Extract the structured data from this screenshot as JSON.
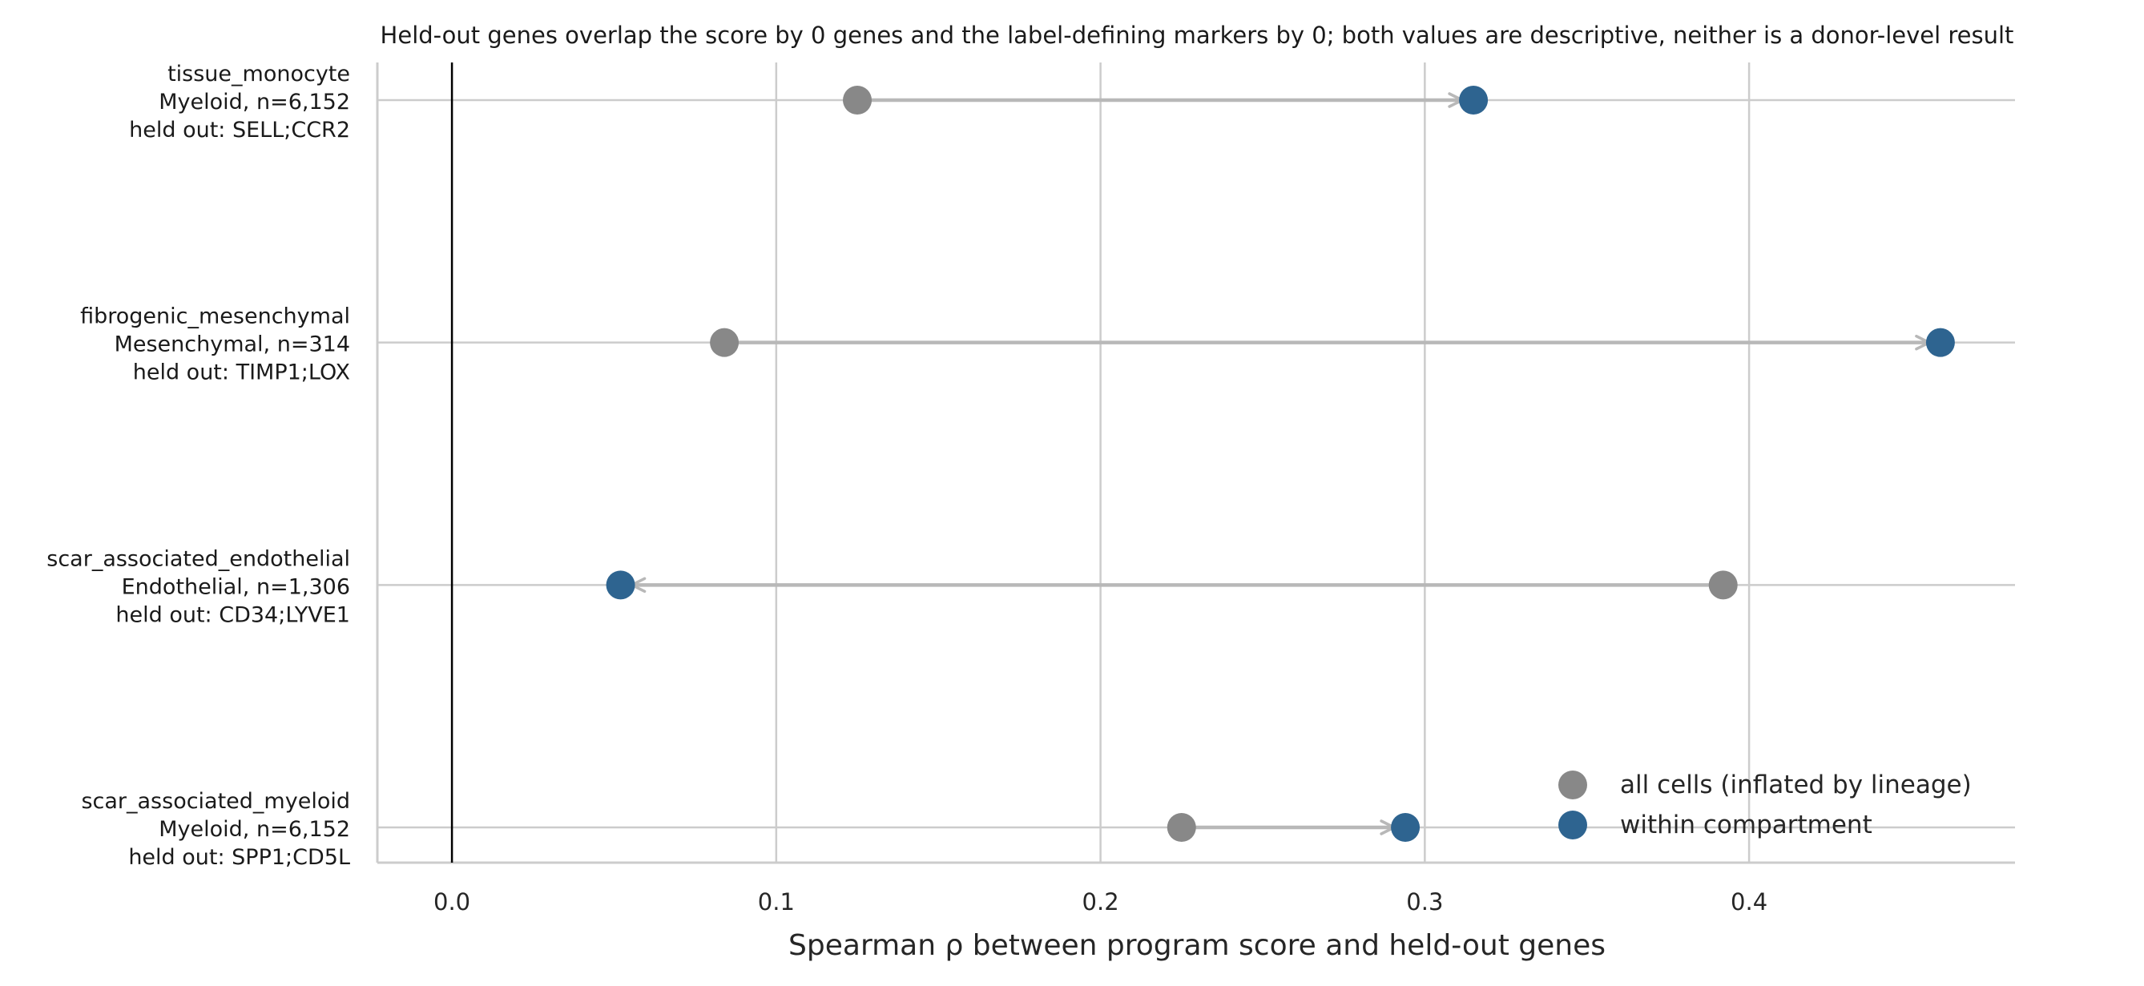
{
  "colors": {
    "all_cells": "#888888",
    "within": "#2e6490",
    "arrow": "#b8b8b8",
    "grid": "#cccccc",
    "zero_line": "#000000",
    "axis": "#cccccc"
  },
  "chart_data": {
    "type": "dumbbell",
    "title": "Held-out genes overlap the score by 0 genes and the label-defining markers by 0; both values are descriptive, neither is a donor-level result",
    "xlabel": "Spearman ρ between program score and held-out genes",
    "xlim": [
      -0.023,
      0.482
    ],
    "xticks": [
      0.0,
      0.1,
      0.2,
      0.3,
      0.4
    ],
    "xtick_labels": [
      "0.0",
      "0.1",
      "0.2",
      "0.3",
      "0.4"
    ],
    "grid": "vertical",
    "reference_line_x": 0.0,
    "legend_position": "lower-right",
    "series": [
      {
        "name": "all cells (inflated by lineage)",
        "key": "all_cells"
      },
      {
        "name": "within compartment",
        "key": "within"
      }
    ],
    "rows": [
      {
        "label": "tissue_monocyte",
        "sublabel": "Myeloid, n=6,152",
        "heldout": "held out: SELL;CCR2",
        "all_cells": 0.125,
        "within": 0.315
      },
      {
        "label": "fibrogenic_mesenchymal",
        "sublabel": "Mesenchymal, n=314",
        "heldout": "held out: TIMP1;LOX",
        "all_cells": 0.084,
        "within": 0.459
      },
      {
        "label": "scar_associated_endothelial",
        "sublabel": "Endothelial, n=1,306",
        "heldout": "held out: CD34;LYVE1",
        "all_cells": 0.392,
        "within": 0.052
      },
      {
        "label": "scar_associated_myeloid",
        "sublabel": "Myeloid, n=6,152",
        "heldout": "held out: SPP1;CD5L",
        "all_cells": 0.225,
        "within": 0.294
      }
    ]
  }
}
